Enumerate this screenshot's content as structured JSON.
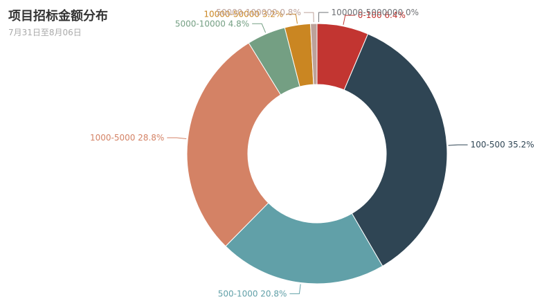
{
  "chart_data": {
    "type": "pie",
    "title": "项目招标金额分布",
    "subtitle": "7月31日至8月06日",
    "donut": true,
    "slices": [
      {
        "label": "0-100",
        "percent_text": "6.4%",
        "value": 6.4,
        "color": "#c23531"
      },
      {
        "label": "100-500",
        "percent_text": "35.2%",
        "value": 35.2,
        "color": "#2f4554"
      },
      {
        "label": "500-1000",
        "percent_text": "20.8%",
        "value": 20.8,
        "color": "#61a0a8"
      },
      {
        "label": "1000-5000",
        "percent_text": "28.8%",
        "value": 28.8,
        "color": "#d48265"
      },
      {
        "label": "5000-10000",
        "percent_text": "4.8%",
        "value": 4.8,
        "color": "#749f83"
      },
      {
        "label": "10000-50000",
        "percent_text": "3.2%",
        "value": 3.2,
        "color": "#ca8622"
      },
      {
        "label": "50000-100000",
        "percent_text": "0.8%",
        "value": 0.8,
        "color": "#bda29a"
      },
      {
        "label": "100000-5000000",
        "percent_text": "0%",
        "value": 0,
        "color": "#6e7074"
      }
    ]
  }
}
